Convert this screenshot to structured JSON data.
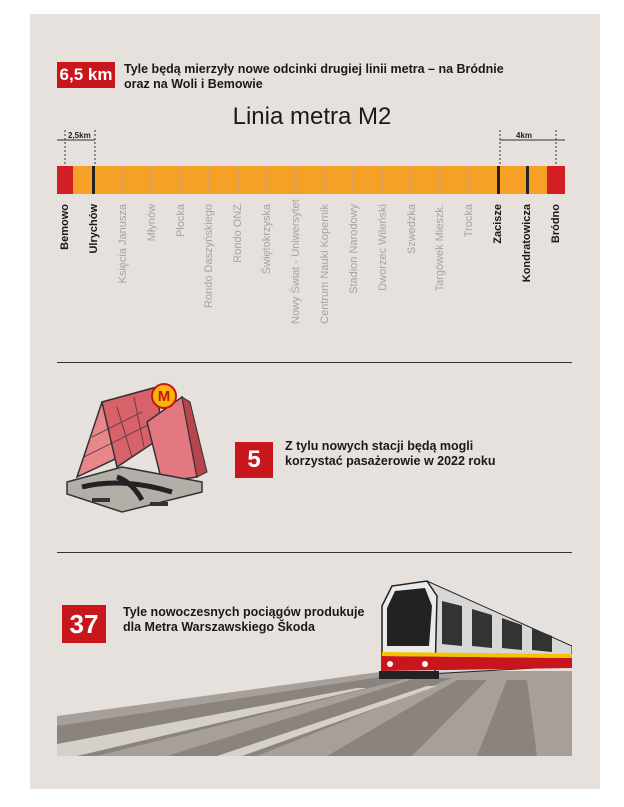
{
  "header": {
    "badge": "6,5 km",
    "text_line1": "Tyle będą mierzyły nowe odcinki drugiej linii metra – na Bródnie",
    "text_line2": "oraz na Woli i Bemowie"
  },
  "map": {
    "title": "Linia metra M2",
    "left_extension": "2,5km",
    "right_extension": "4km",
    "stations": [
      {
        "name": "Bemowo",
        "style": "dark"
      },
      {
        "name": "Ulrychów",
        "style": "dark"
      },
      {
        "name": "Księcia Janusza",
        "style": "light"
      },
      {
        "name": "Młynów",
        "style": "light"
      },
      {
        "name": "Płocka",
        "style": "light"
      },
      {
        "name": "Rondo Daszyńskiego",
        "style": "light"
      },
      {
        "name": "Rondo ONZ",
        "style": "light"
      },
      {
        "name": "Świętokrzyska",
        "style": "light"
      },
      {
        "name": "Nowy Świat - Uniwersytet",
        "style": "light"
      },
      {
        "name": "Centrum Nauki Kopernik",
        "style": "light"
      },
      {
        "name": "Stadion Narodowy",
        "style": "light"
      },
      {
        "name": "Dworzec Wileński",
        "style": "light"
      },
      {
        "name": "Szwedzka",
        "style": "light"
      },
      {
        "name": "Targówek Mieszk.",
        "style": "light"
      },
      {
        "name": "Trocka",
        "style": "light"
      },
      {
        "name": "Zacisze",
        "style": "dark"
      },
      {
        "name": "Kondratowicza",
        "style": "dark"
      },
      {
        "name": "Bródno",
        "style": "dark"
      }
    ]
  },
  "stations_section": {
    "badge": "5",
    "text_line1": "Z tylu nowych stacji będą mogli",
    "text_line2": "korzystać pasażerowie w 2022 roku",
    "metro_logo": "M"
  },
  "trains_section": {
    "badge": "37",
    "text_line1": "Tyle nowoczesnych pociągów produkuje",
    "text_line2": "dla Metra Warszawskiego Škoda"
  },
  "colors": {
    "accent_red": "#c8161d",
    "line_orange": "#f6a126",
    "panel_bg": "#e6e1dc"
  }
}
